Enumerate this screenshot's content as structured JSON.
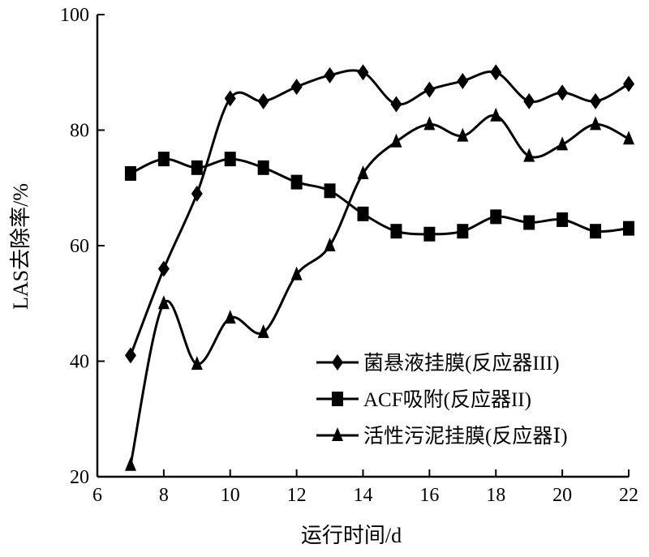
{
  "chart_data": {
    "type": "line",
    "xlabel": "运行时间/d",
    "ylabel": "LAS去除率/%",
    "xlim": [
      6,
      22
    ],
    "ylim": [
      20,
      100
    ],
    "xticks": [
      "6",
      "8",
      "10",
      "12",
      "14",
      "16",
      "18",
      "20",
      "22"
    ],
    "yticks": [
      "20",
      "40",
      "60",
      "80",
      "100"
    ],
    "grid": false,
    "legend_position": "right",
    "series": [
      {
        "name": "菌悬液挂膜(反应器III)",
        "marker": "diamond",
        "x": [
          7,
          8,
          9,
          10,
          11,
          12,
          13,
          14,
          15,
          16,
          17,
          18,
          19,
          20,
          21,
          22
        ],
        "y": [
          41,
          56,
          69,
          85.5,
          85,
          87.5,
          89.5,
          90,
          84.5,
          87,
          88.5,
          90,
          85,
          86.5,
          85,
          88
        ]
      },
      {
        "name": "ACF吸附(反应器II)",
        "marker": "square",
        "x": [
          7,
          8,
          9,
          10,
          11,
          12,
          13,
          14,
          15,
          16,
          17,
          18,
          19,
          20,
          21,
          22
        ],
        "y": [
          72.5,
          75,
          73.5,
          75,
          73.5,
          71,
          69.5,
          65.5,
          62.5,
          62,
          62.5,
          65,
          64,
          64.5,
          62.5,
          63
        ]
      },
      {
        "name": "活性污泥挂膜(反应器Ⅰ)",
        "marker": "triangle",
        "x": [
          7,
          8,
          9,
          10,
          11,
          12,
          13,
          14,
          15,
          16,
          17,
          18,
          19,
          20,
          21,
          22
        ],
        "y": [
          22,
          50,
          39.5,
          47.5,
          45,
          55,
          60,
          72.5,
          78,
          81,
          79,
          82.5,
          75.5,
          77.5,
          81,
          78.5
        ]
      }
    ]
  }
}
